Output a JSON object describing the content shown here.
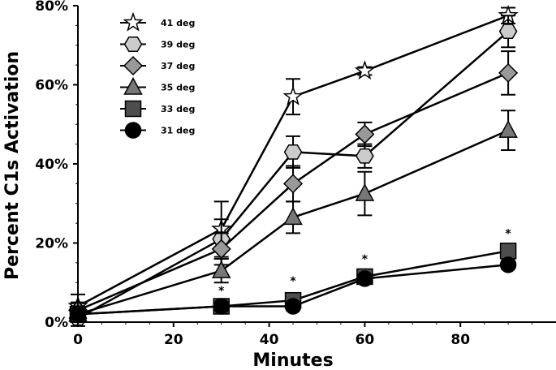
{
  "chart_data": {
    "type": "line",
    "title": "",
    "xlabel": "Minutes",
    "ylabel": "Percent C1s Activation",
    "xlim": [
      0,
      100
    ],
    "ylim": [
      0,
      80
    ],
    "x_ticks": [
      0,
      20,
      40,
      60,
      80
    ],
    "x_tick_labels": [
      "0",
      "20",
      "40",
      "60",
      "80"
    ],
    "y_ticks": [
      0,
      20,
      40,
      60,
      80
    ],
    "y_tick_labels": [
      "0%",
      "20%",
      "40%",
      "60%",
      "80%"
    ],
    "x": [
      0,
      30,
      45,
      60,
      90
    ],
    "legend_position": "top-left",
    "series": [
      {
        "name": "41 deg",
        "marker": "star",
        "fill": "#ffffff",
        "values": [
          4,
          23.5,
          57,
          63.5,
          77.5
        ],
        "errors": [
          3,
          7,
          4.5,
          1,
          2
        ]
      },
      {
        "name": "39 deg",
        "marker": "hexagon",
        "fill": "#cccccc",
        "values": [
          1,
          21,
          43,
          42,
          73.5
        ],
        "errors": [
          2,
          5,
          4,
          3,
          4
        ]
      },
      {
        "name": "37 deg",
        "marker": "diamond",
        "fill": "#999999",
        "values": [
          3,
          18.5,
          35,
          47.5,
          63
        ],
        "errors": [
          2,
          4,
          4.5,
          3,
          5.5
        ]
      },
      {
        "name": "35 deg",
        "marker": "triangle",
        "fill": "#777777",
        "values": [
          2,
          13,
          26.5,
          32.5,
          48.5
        ],
        "errors": [
          2,
          3,
          4,
          5.5,
          5
        ]
      },
      {
        "name": "33 deg",
        "marker": "square",
        "fill": "#4d4d4d",
        "values": [
          2,
          4,
          5.5,
          11.5,
          18
        ],
        "errors": [
          1.5,
          1,
          1,
          1,
          1
        ]
      },
      {
        "name": "31 deg",
        "marker": "circle",
        "fill": "#000000",
        "values": [
          2,
          4,
          4,
          11,
          14.5
        ],
        "errors": [
          1.5,
          1,
          1,
          1,
          1
        ]
      }
    ],
    "annotations": [
      {
        "text": "*",
        "x": 30,
        "y": 8
      },
      {
        "text": "*",
        "x": 45,
        "y": 10.5
      },
      {
        "text": "*",
        "x": 60,
        "y": 16
      },
      {
        "text": "*",
        "x": 90,
        "y": 22.5
      }
    ]
  }
}
